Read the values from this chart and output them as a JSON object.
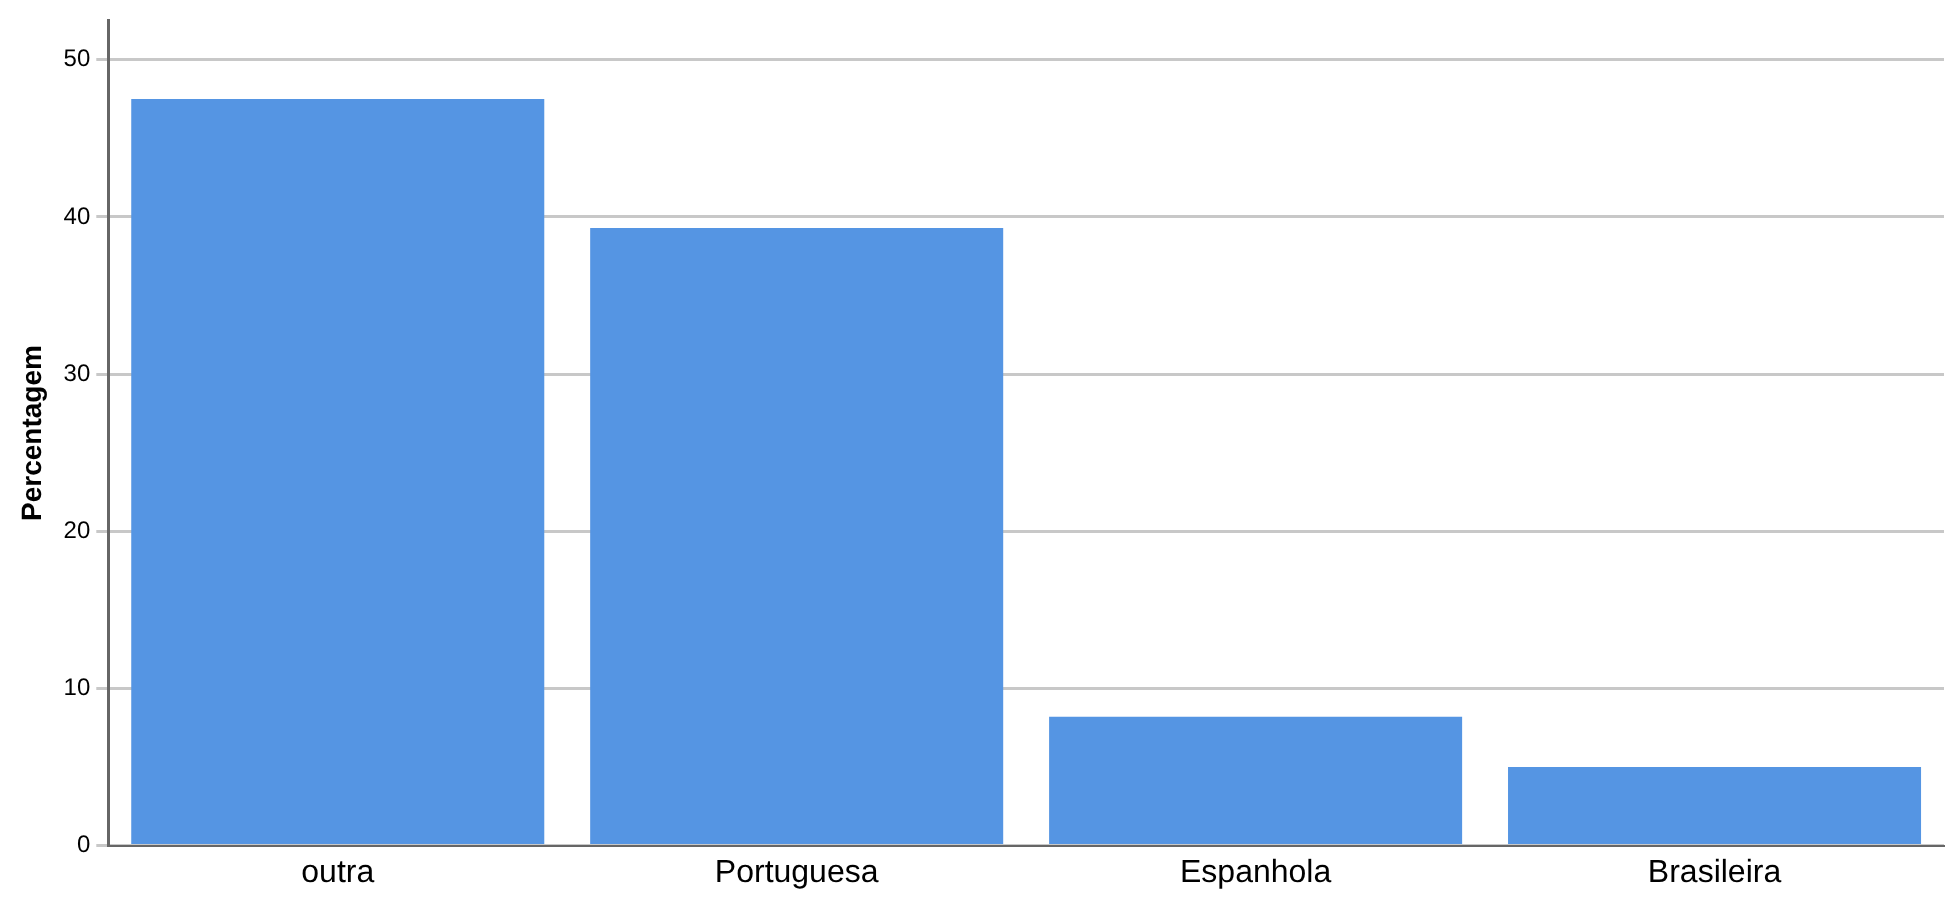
{
  "chart_data": {
    "type": "bar",
    "ylabel": "Percentagem",
    "categories": [
      "outra",
      "Portuguesa",
      "Espanhola",
      "Brasileira"
    ],
    "values": [
      47.5,
      39.3,
      8.2,
      5.0
    ],
    "color": "#5595e3",
    "ylim": [
      0,
      52.5
    ],
    "yticks": [
      0,
      10,
      20,
      30,
      40,
      50
    ],
    "grid": "y",
    "legend": false
  }
}
